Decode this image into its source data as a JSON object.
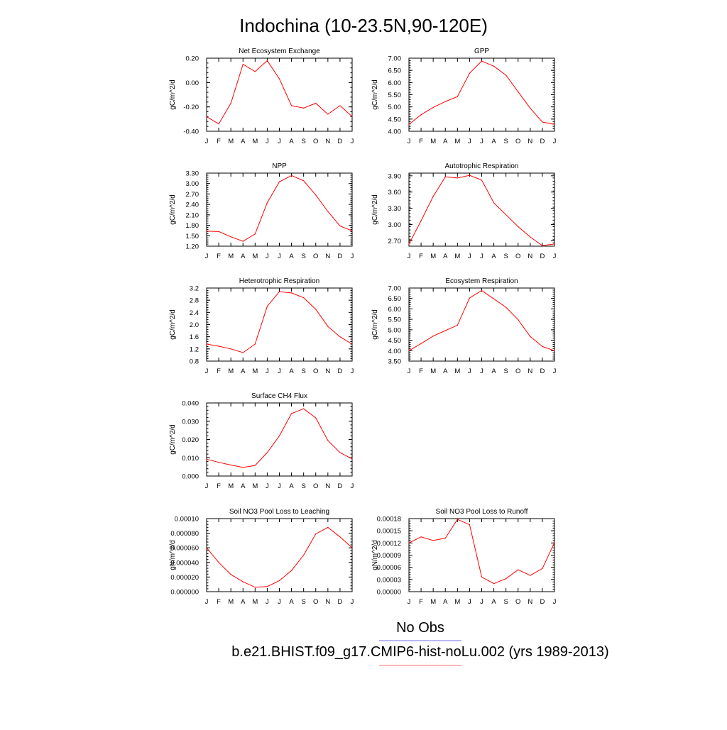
{
  "page_title": "Indochina (10-23.5N,90-120E)",
  "legend": {
    "entries": [
      {
        "label": "No Obs",
        "color": "#6e6ef0"
      },
      {
        "label": "b.e21.BHIST.f09_g17.CMIP6-hist-noLu.002 (yrs 1989-2013)",
        "color": "#ff0000"
      }
    ]
  },
  "chart_data": [
    {
      "type": "line",
      "title": "Net Ecosystem Exchange",
      "ylabel": "gC/m^2/d",
      "xlabel": "",
      "categories": [
        "J",
        "F",
        "M",
        "A",
        "M",
        "J",
        "J",
        "A",
        "S",
        "O",
        "N",
        "D",
        "J"
      ],
      "ylim": [
        -0.4,
        0.2
      ],
      "yticks": [
        "-0.40",
        "-0.20",
        "0.00",
        "0.20"
      ],
      "series": [
        {
          "color": "#ff0000",
          "values": [
            -0.28,
            -0.34,
            -0.17,
            0.15,
            0.09,
            0.18,
            0.03,
            -0.19,
            -0.21,
            -0.17,
            -0.26,
            -0.19,
            -0.28
          ]
        }
      ]
    },
    {
      "type": "line",
      "title": "GPP",
      "ylabel": "gC/m^2/d",
      "xlabel": "",
      "categories": [
        "J",
        "F",
        "M",
        "A",
        "M",
        "J",
        "J",
        "A",
        "S",
        "O",
        "N",
        "D",
        "J"
      ],
      "ylim": [
        4.0,
        7.0
      ],
      "yticks": [
        "4.00",
        "4.50",
        "5.00",
        "5.50",
        "6.00",
        "6.50",
        "7.00"
      ],
      "series": [
        {
          "color": "#ff0000",
          "values": [
            4.28,
            4.68,
            4.98,
            5.22,
            5.42,
            6.38,
            6.88,
            6.67,
            6.3,
            5.62,
            4.95,
            4.38,
            4.28
          ]
        }
      ]
    },
    {
      "type": "line",
      "title": "NPP",
      "ylabel": "gC/m^2/d",
      "xlabel": "",
      "categories": [
        "J",
        "F",
        "M",
        "A",
        "M",
        "J",
        "J",
        "A",
        "S",
        "O",
        "N",
        "D",
        "J"
      ],
      "ylim": [
        1.2,
        3.3
      ],
      "yticks": [
        "1.20",
        "1.50",
        "1.80",
        "2.10",
        "2.40",
        "2.70",
        "3.00",
        "3.30"
      ],
      "series": [
        {
          "color": "#ff0000",
          "values": [
            1.63,
            1.62,
            1.47,
            1.34,
            1.55,
            2.45,
            3.05,
            3.23,
            3.08,
            2.67,
            2.2,
            1.78,
            1.64
          ]
        }
      ]
    },
    {
      "type": "line",
      "title": "Autotrophic Respiration",
      "ylabel": "gC/m^2/d",
      "xlabel": "",
      "categories": [
        "J",
        "F",
        "M",
        "A",
        "M",
        "J",
        "J",
        "A",
        "S",
        "O",
        "N",
        "D",
        "J"
      ],
      "ylim": [
        2.6,
        3.95
      ],
      "yticks": [
        "2.70",
        "3.00",
        "3.30",
        "3.60",
        "3.90"
      ],
      "series": [
        {
          "color": "#ff0000",
          "values": [
            2.64,
            3.07,
            3.52,
            3.88,
            3.86,
            3.91,
            3.82,
            3.4,
            3.18,
            2.96,
            2.77,
            2.61,
            2.64
          ]
        }
      ]
    },
    {
      "type": "line",
      "title": "Heterotrophic Respiration",
      "ylabel": "gC/m^2/d",
      "xlabel": "",
      "categories": [
        "J",
        "F",
        "M",
        "A",
        "M",
        "J",
        "J",
        "A",
        "S",
        "O",
        "N",
        "D",
        "J"
      ],
      "ylim": [
        0.8,
        3.2
      ],
      "yticks": [
        "0.8",
        "1.2",
        "1.6",
        "2.0",
        "2.4",
        "2.8",
        "3.2"
      ],
      "series": [
        {
          "color": "#ff0000",
          "values": [
            1.36,
            1.29,
            1.2,
            1.08,
            1.36,
            2.6,
            3.08,
            3.04,
            2.88,
            2.5,
            1.94,
            1.6,
            1.36
          ]
        }
      ]
    },
    {
      "type": "line",
      "title": "Ecosystem Respiration",
      "ylabel": "gC/m^2/d",
      "xlabel": "",
      "categories": [
        "J",
        "F",
        "M",
        "A",
        "M",
        "J",
        "J",
        "A",
        "S",
        "O",
        "N",
        "D",
        "J"
      ],
      "ylim": [
        3.5,
        7.0
      ],
      "yticks": [
        "3.50",
        "4.00",
        "4.50",
        "5.00",
        "5.50",
        "6.00",
        "6.50",
        "7.00"
      ],
      "series": [
        {
          "color": "#ff0000",
          "values": [
            4.0,
            4.34,
            4.7,
            4.96,
            5.22,
            6.52,
            6.88,
            6.48,
            6.08,
            5.48,
            4.68,
            4.2,
            4.0
          ]
        }
      ]
    },
    {
      "type": "line",
      "title": "Surface CH4 Flux",
      "ylabel": "gC/m^2/d",
      "xlabel": "",
      "categories": [
        "J",
        "F",
        "M",
        "A",
        "M",
        "J",
        "J",
        "A",
        "S",
        "O",
        "N",
        "D",
        "J"
      ],
      "ylim": [
        0.0,
        0.04
      ],
      "yticks": [
        "0.000",
        "0.010",
        "0.020",
        "0.030",
        "0.040"
      ],
      "series": [
        {
          "color": "#ff0000",
          "values": [
            0.0092,
            0.0075,
            0.006,
            0.0047,
            0.0058,
            0.0128,
            0.022,
            0.0342,
            0.0368,
            0.0318,
            0.0195,
            0.0128,
            0.0094
          ]
        }
      ]
    },
    {
      "type": "line",
      "title": "Soil NO3 Pool Loss to Leaching",
      "ylabel": "gN/m^2/d",
      "xlabel": "",
      "categories": [
        "J",
        "F",
        "M",
        "A",
        "M",
        "J",
        "J",
        "A",
        "S",
        "O",
        "N",
        "D",
        "J"
      ],
      "ylim": [
        0.0,
        0.0001
      ],
      "yticks": [
        "0.000000",
        "0.000020",
        "0.000040",
        "0.000060",
        "0.000080",
        "0.00010"
      ],
      "series": [
        {
          "color": "#ff0000",
          "values": [
            6e-05,
            4e-05,
            2.35e-05,
            1.35e-05,
            6e-06,
            7e-06,
            1.5e-05,
            2.9e-05,
            5e-05,
            7.9e-05,
            8.8e-05,
            7.5e-05,
            6e-05
          ]
        }
      ]
    },
    {
      "type": "line",
      "title": "Soil NO3 Pool Loss to Runoff",
      "ylabel": "gN/m^2/d",
      "xlabel": "",
      "categories": [
        "J",
        "F",
        "M",
        "A",
        "M",
        "J",
        "J",
        "A",
        "S",
        "O",
        "N",
        "D",
        "J"
      ],
      "ylim": [
        0.0,
        0.00018
      ],
      "yticks": [
        "0.00000",
        "0.00003",
        "0.00006",
        "0.00009",
        "0.00012",
        "0.00015",
        "0.00018"
      ],
      "series": [
        {
          "color": "#ff0000",
          "values": [
            0.00012,
            0.000135,
            0.000126,
            0.000132,
            0.000178,
            0.000165,
            3.6e-05,
            2e-05,
            3.2e-05,
            5.4e-05,
            4e-05,
            5.7e-05,
            0.000121
          ]
        }
      ]
    }
  ]
}
